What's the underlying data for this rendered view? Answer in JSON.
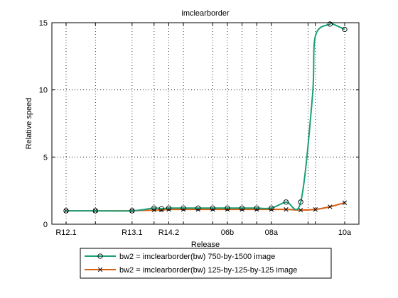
{
  "chart_data": {
    "type": "line",
    "title": "imclearborder",
    "xlabel": "Release",
    "ylabel": "Relative speed",
    "ylim": [
      0,
      15
    ],
    "yticks": [
      0,
      5,
      10,
      15
    ],
    "xlim": [
      0,
      19
    ],
    "xticks": [
      {
        "x": 0,
        "label": "R12.1"
      },
      {
        "x": 2,
        "label": ""
      },
      {
        "x": 4.5,
        "label": "R13.1"
      },
      {
        "x": 6,
        "label": ""
      },
      {
        "x": 7,
        "label": "R14.2"
      },
      {
        "x": 8,
        "label": ""
      },
      {
        "x": 10,
        "label": ""
      },
      {
        "x": 11,
        "label": "06b"
      },
      {
        "x": 12,
        "label": ""
      },
      {
        "x": 13,
        "label": ""
      },
      {
        "x": 14,
        "label": "08a"
      },
      {
        "x": 16.5,
        "label": ""
      },
      {
        "x": 17,
        "label": ""
      },
      {
        "x": 19,
        "label": "10a"
      }
    ],
    "grid": true,
    "legend_position": "bottom",
    "series": [
      {
        "name": "bw2 = imclearborder(bw)  750-by-1500 image",
        "color": "#1a9e7a",
        "marker": "circle",
        "x": [
          0,
          2,
          4.5,
          6,
          6.5,
          7,
          8,
          9,
          10,
          11,
          12,
          13,
          14,
          15,
          16,
          16.8,
          17,
          18,
          18.2,
          19
        ],
        "y": [
          1.0,
          1.0,
          1.0,
          1.2,
          1.15,
          1.2,
          1.2,
          1.2,
          1.2,
          1.2,
          1.2,
          1.2,
          1.2,
          1.65,
          1.65,
          9.5,
          14.0,
          14.9,
          14.9,
          14.5
        ],
        "marker_indices": [
          0,
          1,
          2,
          3,
          4,
          5,
          6,
          7,
          8,
          9,
          10,
          11,
          12,
          13,
          14,
          17,
          19
        ]
      },
      {
        "name": "bw2 = imclearborder(bw)  125-by-125-by-125 image",
        "color": "#d95f0e",
        "marker": "x",
        "x": [
          0,
          2,
          4.5,
          6,
          6.5,
          7,
          8,
          9,
          10,
          11,
          12,
          13,
          14,
          15,
          16,
          17,
          18,
          19
        ],
        "y": [
          1.0,
          1.0,
          1.0,
          1.05,
          1.05,
          1.1,
          1.1,
          1.1,
          1.1,
          1.1,
          1.1,
          1.1,
          1.1,
          1.1,
          1.05,
          1.1,
          1.3,
          1.6
        ],
        "marker_indices": [
          0,
          1,
          2,
          3,
          4,
          5,
          6,
          7,
          8,
          9,
          10,
          11,
          12,
          13,
          14,
          15,
          16,
          17
        ]
      }
    ]
  }
}
